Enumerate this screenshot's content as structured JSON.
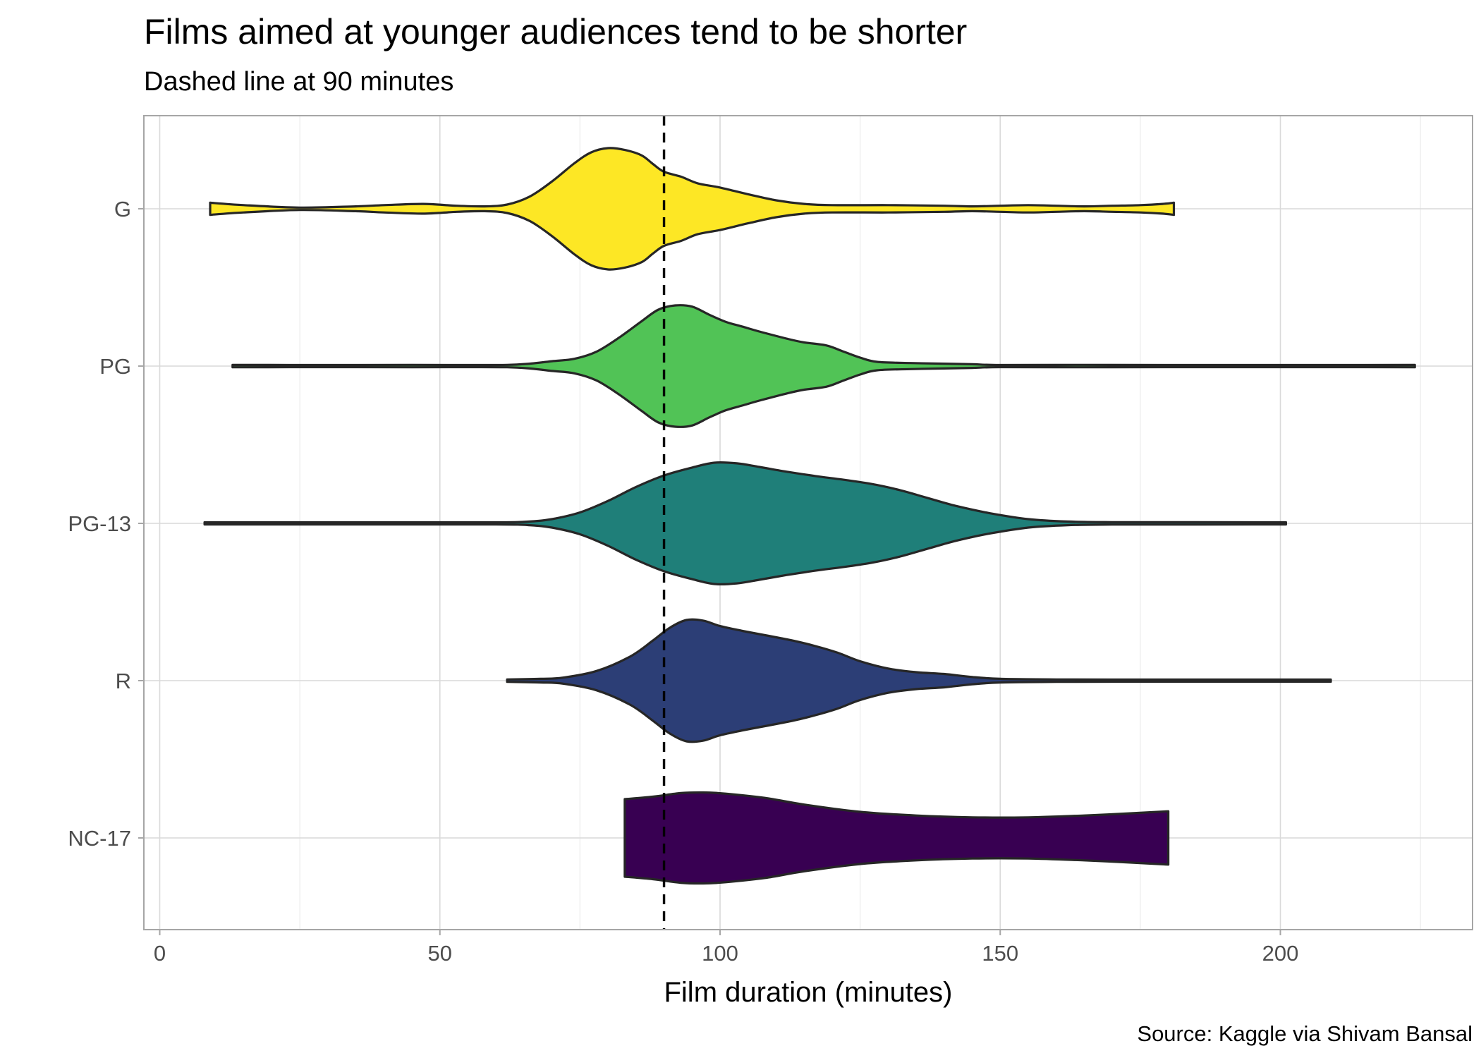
{
  "chart_data": {
    "type": "violin",
    "title": "Films aimed at younger audiences tend to be shorter",
    "subtitle": "Dashed line at 90 minutes",
    "xlabel": "Film duration (minutes)",
    "ylabel": "",
    "caption": "Source: Kaggle via Shivam Bansal",
    "xlim": [
      -2,
      234
    ],
    "x_ticks": [
      0,
      50,
      100,
      150,
      200
    ],
    "x_tick_labels": [
      "0",
      "50",
      "100",
      "150",
      "200"
    ],
    "grid": true,
    "legend": "none",
    "reference_line": {
      "x": 90,
      "style": "dashed"
    },
    "categories": [
      "G",
      "PG",
      "PG-13",
      "R",
      "NC-17"
    ],
    "series": [
      {
        "name": "G",
        "color": "#FDE725",
        "range": [
          9,
          181
        ],
        "density": [
          [
            9,
            0.1
          ],
          [
            15,
            0.06
          ],
          [
            25,
            0.02
          ],
          [
            35,
            0.04
          ],
          [
            40,
            0.06
          ],
          [
            47,
            0.08
          ],
          [
            53,
            0.05
          ],
          [
            58,
            0.04
          ],
          [
            62,
            0.07
          ],
          [
            66,
            0.2
          ],
          [
            70,
            0.45
          ],
          [
            74,
            0.75
          ],
          [
            77,
            0.93
          ],
          [
            80,
            1.0
          ],
          [
            83,
            0.97
          ],
          [
            86,
            0.88
          ],
          [
            88,
            0.74
          ],
          [
            90,
            0.61
          ],
          [
            93,
            0.53
          ],
          [
            96,
            0.42
          ],
          [
            100,
            0.35
          ],
          [
            105,
            0.24
          ],
          [
            110,
            0.14
          ],
          [
            115,
            0.08
          ],
          [
            120,
            0.06
          ],
          [
            130,
            0.06
          ],
          [
            140,
            0.05
          ],
          [
            145,
            0.04
          ],
          [
            150,
            0.05
          ],
          [
            155,
            0.06
          ],
          [
            160,
            0.05
          ],
          [
            165,
            0.04
          ],
          [
            170,
            0.05
          ],
          [
            175,
            0.06
          ],
          [
            179,
            0.08
          ],
          [
            181,
            0.1
          ]
        ]
      },
      {
        "name": "PG",
        "color": "#51C356",
        "range": [
          13,
          224
        ],
        "density": [
          [
            13,
            0.02
          ],
          [
            30,
            0.01
          ],
          [
            45,
            0.02
          ],
          [
            55,
            0.01
          ],
          [
            62,
            0.02
          ],
          [
            66,
            0.04
          ],
          [
            70,
            0.08
          ],
          [
            74,
            0.12
          ],
          [
            78,
            0.24
          ],
          [
            82,
            0.47
          ],
          [
            86,
            0.74
          ],
          [
            89,
            0.93
          ],
          [
            92,
            1.0
          ],
          [
            95,
            0.98
          ],
          [
            98,
            0.85
          ],
          [
            101,
            0.73
          ],
          [
            104,
            0.65
          ],
          [
            107,
            0.57
          ],
          [
            112,
            0.45
          ],
          [
            115,
            0.39
          ],
          [
            119,
            0.34
          ],
          [
            122,
            0.24
          ],
          [
            125,
            0.14
          ],
          [
            128,
            0.07
          ],
          [
            134,
            0.05
          ],
          [
            140,
            0.04
          ],
          [
            145,
            0.03
          ],
          [
            150,
            0.01
          ],
          [
            165,
            0.02
          ],
          [
            180,
            0.01
          ],
          [
            200,
            0.01
          ],
          [
            215,
            0.01
          ],
          [
            224,
            0.02
          ]
        ]
      },
      {
        "name": "PG-13",
        "color": "#1F7F79",
        "range": [
          8,
          201
        ],
        "density": [
          [
            8,
            0.01
          ],
          [
            40,
            0.01
          ],
          [
            60,
            0.01
          ],
          [
            66,
            0.03
          ],
          [
            70,
            0.07
          ],
          [
            75,
            0.18
          ],
          [
            80,
            0.37
          ],
          [
            85,
            0.6
          ],
          [
            90,
            0.79
          ],
          [
            95,
            0.92
          ],
          [
            99,
            1.0
          ],
          [
            103,
            0.99
          ],
          [
            107,
            0.93
          ],
          [
            112,
            0.85
          ],
          [
            117,
            0.78
          ],
          [
            122,
            0.72
          ],
          [
            127,
            0.65
          ],
          [
            132,
            0.55
          ],
          [
            137,
            0.42
          ],
          [
            142,
            0.29
          ],
          [
            148,
            0.17
          ],
          [
            155,
            0.07
          ],
          [
            162,
            0.03
          ],
          [
            170,
            0.02
          ],
          [
            185,
            0.02
          ],
          [
            195,
            0.01
          ],
          [
            201,
            0.01
          ]
        ]
      },
      {
        "name": "R",
        "color": "#2C3E76",
        "range": [
          62,
          209
        ],
        "density": [
          [
            62,
            0.02
          ],
          [
            68,
            0.03
          ],
          [
            72,
            0.05
          ],
          [
            78,
            0.16
          ],
          [
            84,
            0.4
          ],
          [
            88,
            0.66
          ],
          [
            91,
            0.87
          ],
          [
            94,
            1.0
          ],
          [
            97,
            0.99
          ],
          [
            100,
            0.9
          ],
          [
            104,
            0.82
          ],
          [
            108,
            0.75
          ],
          [
            113,
            0.66
          ],
          [
            117,
            0.57
          ],
          [
            121,
            0.46
          ],
          [
            125,
            0.32
          ],
          [
            130,
            0.2
          ],
          [
            135,
            0.14
          ],
          [
            140,
            0.11
          ],
          [
            145,
            0.06
          ],
          [
            150,
            0.03
          ],
          [
            160,
            0.02
          ],
          [
            175,
            0.01
          ],
          [
            190,
            0.01
          ],
          [
            209,
            0.01
          ]
        ]
      },
      {
        "name": "NC-17",
        "color": "#380052",
        "range": [
          83,
          180
        ],
        "density": [
          [
            83,
            0.64
          ],
          [
            88,
            0.68
          ],
          [
            93,
            0.74
          ],
          [
            97,
            0.75
          ],
          [
            101,
            0.73
          ],
          [
            108,
            0.66
          ],
          [
            115,
            0.55
          ],
          [
            125,
            0.43
          ],
          [
            135,
            0.37
          ],
          [
            145,
            0.34
          ],
          [
            155,
            0.34
          ],
          [
            165,
            0.37
          ],
          [
            172,
            0.4
          ],
          [
            180,
            0.44
          ]
        ]
      }
    ]
  }
}
